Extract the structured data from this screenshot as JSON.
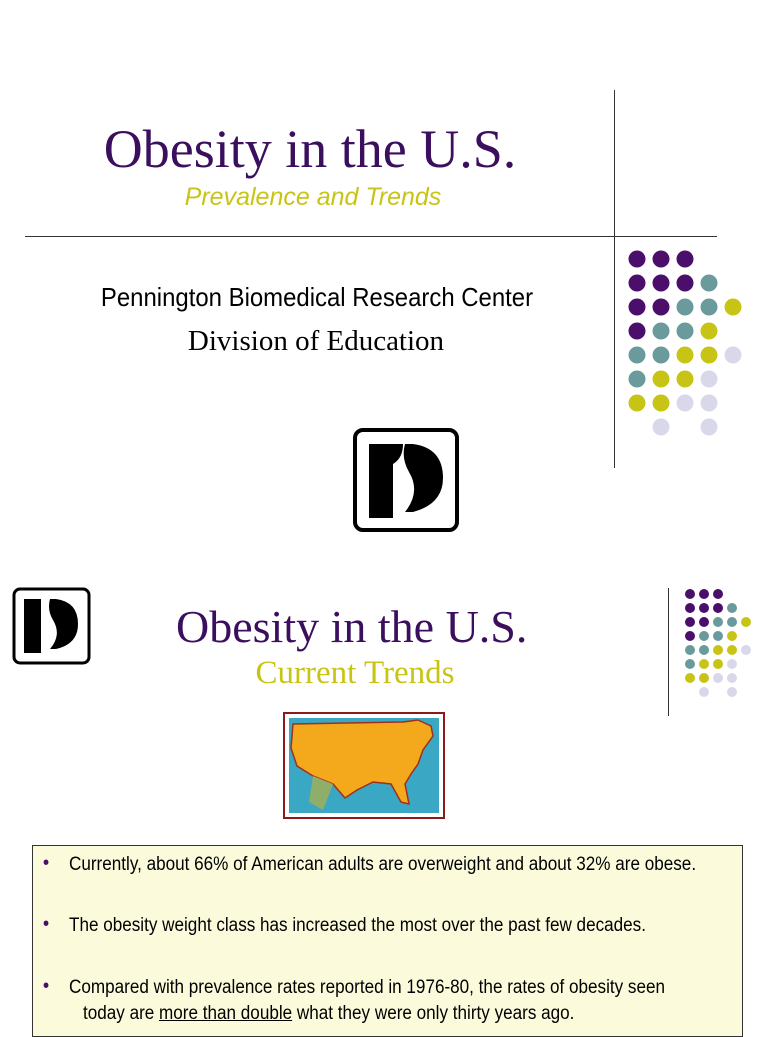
{
  "slide1": {
    "title": "Obesity in the U.S.",
    "subtitle": "Prevalence and Trends",
    "organization": "Pennington Biomedical Research Center",
    "division": "Division of Education"
  },
  "slide2": {
    "title": "Obesity in the U.S.",
    "subtitle": "Current Trends",
    "bullets": [
      {
        "text": "Currently, about  66% of American adults are overweight and about  32% are obese."
      },
      {
        "text": "The obesity weight class has increased the most over the past few decades."
      },
      {
        "line1": "Compared with prevalence rates reported in 1976-80, the rates of obesity seen",
        "line2_start": "today are ",
        "line2_underlined": "more than double",
        "line2_end": " what they were only thirty years ago."
      }
    ]
  }
}
